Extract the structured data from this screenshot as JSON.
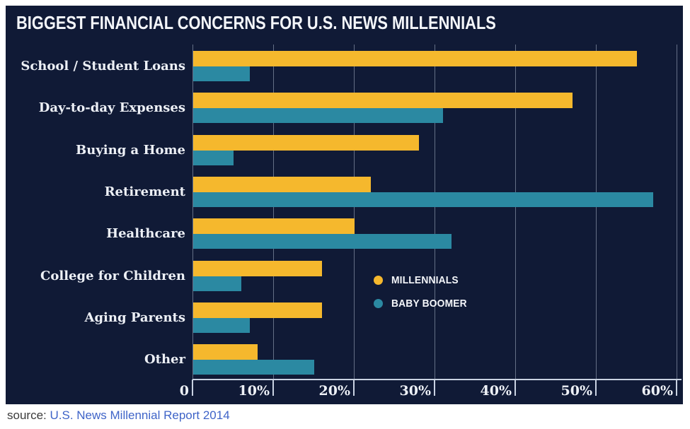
{
  "title": "BIGGEST FINANCIAL CONCERNS FOR U.S. NEWS MILLENNIALS",
  "source": {
    "prefix": "source:",
    "link_text": "U.S. News Millennial Report 2014"
  },
  "legend": [
    {
      "label": "MILLENNIALS",
      "color": "#F5B82D",
      "dot_icon": "circle"
    },
    {
      "label": "BABY BOOMER",
      "color": "#2B89A2",
      "dot_icon": "circle"
    }
  ],
  "colors": {
    "panel_background": "#101A36",
    "millennials_bar": "#F5B82D",
    "baby_boomer_bar": "#2B89A2",
    "gridline": "rgba(205,214,232,0.45)",
    "axis": "#C9D2E2",
    "text": "#EDF0F6",
    "source_link": "#3F64C8"
  },
  "chart_data": {
    "type": "bar",
    "orientation": "horizontal",
    "title": "BIGGEST FINANCIAL CONCERNS FOR U.S. NEWS MILLENNIALS",
    "categories": [
      "School / Student Loans",
      "Day-to-day Expenses",
      "Buying a Home",
      "Retirement",
      "Healthcare",
      "College for Children",
      "Aging Parents",
      "Other"
    ],
    "series": [
      {
        "name": "MILLENNIALS",
        "color": "#F5B82D",
        "values": [
          55,
          47,
          28,
          22,
          20,
          16,
          16,
          8
        ]
      },
      {
        "name": "BABY BOOMER",
        "color": "#2B89A2",
        "values": [
          7,
          31,
          5,
          57,
          32,
          6,
          7,
          15
        ]
      }
    ],
    "value_unit": "%",
    "xlim": [
      0,
      60
    ],
    "x_tick_labels": [
      "0",
      "10%",
      "20%",
      "30%",
      "40%",
      "50%",
      "60%"
    ],
    "grid": true,
    "legend_position": "bottom-right"
  }
}
